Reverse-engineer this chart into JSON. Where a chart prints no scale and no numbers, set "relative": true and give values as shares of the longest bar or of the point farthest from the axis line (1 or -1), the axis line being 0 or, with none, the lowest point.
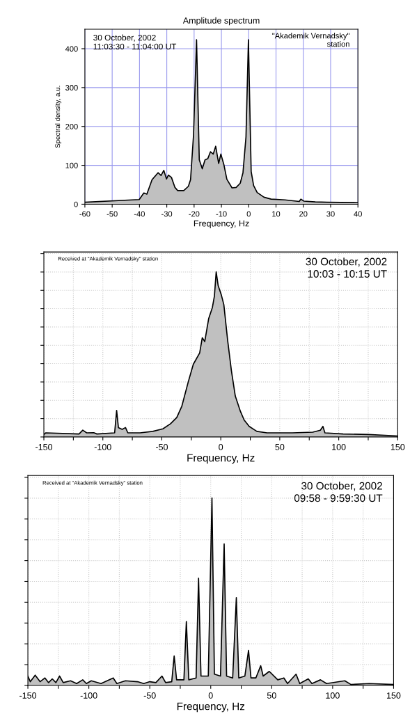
{
  "chart_data": [
    {
      "type": "area",
      "title": "Amplitude spectrum",
      "xlabel": "Frequency, Hz",
      "ylabel": "Spectral density, a.u.",
      "annotations": [
        "30 October, 2002\n11:03:30 - 11:04:00 UT",
        "\"Akademik Vernadsky\"\n station"
      ],
      "xlim": [
        -60,
        40
      ],
      "xticks": [
        -60,
        -50,
        -40,
        -30,
        -20,
        -10,
        0,
        10,
        20,
        30,
        40
      ],
      "ylim": [
        0,
        450
      ],
      "yticks": [
        0,
        100,
        200,
        300,
        400
      ],
      "grid": true,
      "series": [
        {
          "color": "#c0c0c0",
          "x": [
            -60,
            -40.1,
            -38.4,
            -37.3,
            -35.4,
            -33.2,
            -32.1,
            -31.1,
            -30.1,
            -29.4,
            -28.3,
            -27,
            -26,
            -23.8,
            -22.1,
            -21.3,
            -20.2,
            -19.1,
            -18.1,
            -17,
            -16,
            -15,
            -14,
            -13,
            -12.1,
            -11,
            -10.2,
            -9.1,
            -8,
            -6.1,
            -4.6,
            -3.1,
            -2.1,
            -1,
            -0.1,
            0.9,
            1.8,
            3.1,
            5.6,
            8.2,
            13.3,
            18.5,
            19.1,
            20.2,
            24.4,
            28.7,
            39.8
          ],
          "values": [
            5,
            12,
            29,
            26,
            63,
            81,
            74,
            87,
            65,
            75,
            69,
            43,
            35,
            35,
            46,
            63,
            179,
            423,
            114,
            91,
            114,
            117,
            135,
            129,
            149,
            105,
            129,
            102,
            64,
            42,
            43,
            54,
            81,
            173,
            423,
            84,
            48,
            30,
            18,
            13,
            11,
            7,
            13,
            8,
            6,
            5,
            4
          ]
        }
      ]
    },
    {
      "type": "area",
      "xlabel": "Frequency, Hz",
      "relative": true,
      "tick_labels": "x",
      "annotations": [
        "Received at \"Akademik Vernadsky\" station",
        "30 October, 2002\n10:03 - 10:15 UT"
      ],
      "xlim": [
        -150,
        150
      ],
      "xticks": [
        -150,
        {
          "value": -125,
          "label": null
        },
        -100,
        {
          "value": -75,
          "label": null
        },
        -50,
        {
          "value": -25,
          "label": null
        },
        0,
        {
          "value": 25,
          "label": null
        },
        50,
        {
          "value": 75,
          "label": null
        },
        100,
        {
          "value": 125,
          "label": null
        },
        150
      ],
      "grid": true,
      "series": [
        {
          "color": "#c0c0c0",
          "x": [
            -150,
            -148.3,
            -120.2,
            -117,
            -113.7,
            -107.7,
            -105,
            -90,
            -88.3,
            -86.8,
            -83.6,
            -80.8,
            -78.8,
            -68.5,
            -57.7,
            -49.1,
            -42.6,
            -37.3,
            -33,
            -27.6,
            -23.3,
            -17.9,
            -15.7,
            -13.6,
            -10.3,
            -7.1,
            -5.4,
            -3.9,
            -2.2,
            0.4,
            2.6,
            5.8,
            9,
            12.3,
            16.6,
            19.8,
            24.1,
            30.6,
            39.2,
            60.7,
            78,
            84.4,
            86.6,
            88.3,
            103.8,
            125.3,
            150
          ],
          "values": [
            0.015,
            0.025,
            0.018,
            0.041,
            0.025,
            0.026,
            0.018,
            0.025,
            0.161,
            0.057,
            0.046,
            0.057,
            0.025,
            0.025,
            0.034,
            0.049,
            0.08,
            0.118,
            0.187,
            0.333,
            0.44,
            0.509,
            0.601,
            0.578,
            0.716,
            0.785,
            0.854,
            1,
            0.916,
            0.862,
            0.801,
            0.586,
            0.402,
            0.248,
            0.156,
            0.103,
            0.064,
            0.034,
            0.025,
            0.025,
            0.029,
            0.041,
            0.064,
            0.025,
            0.018,
            0.015,
            0.006
          ]
        }
      ]
    },
    {
      "type": "area",
      "xlabel": "Frequency, Hz",
      "relative": true,
      "tick_labels": "x",
      "annotations": [
        "Received at \"Akademik Vernadsky\" station",
        "30 October, 2002\n09:58 - 9:59:30 UT"
      ],
      "xlim": [
        -150,
        150
      ],
      "xticks": [
        -150,
        {
          "value": -125,
          "label": null
        },
        -100,
        {
          "value": -75,
          "label": null
        },
        -50,
        {
          "value": -25,
          "label": null
        },
        0,
        {
          "value": 25,
          "label": null
        },
        50,
        {
          "value": 75,
          "label": null
        },
        100,
        {
          "value": 125,
          "label": null
        },
        150
      ],
      "grid": true,
      "series": [
        {
          "color": "#c0c0c0",
          "x": [
            -150,
            -148,
            -144,
            -140,
            -136,
            -133,
            -130,
            -127,
            -124,
            -121,
            -115,
            -110,
            -105,
            -102,
            -98,
            -90,
            -80,
            -77,
            -70,
            -60,
            -55,
            -50,
            -45,
            -40,
            -37,
            -32,
            -30,
            -28,
            -22,
            -20,
            -18,
            -12,
            -10,
            -8,
            -2,
            1,
            3,
            8,
            11,
            13,
            18,
            21,
            23,
            28,
            31,
            33,
            37,
            41,
            43,
            48,
            55,
            60,
            63,
            70,
            73,
            80,
            83,
            90,
            95,
            110,
            115,
            130,
            150
          ],
          "values": [
            0.05,
            0.02,
            0.055,
            0.02,
            0.04,
            0.015,
            0.035,
            0.015,
            0.05,
            0.015,
            0.025,
            0.01,
            0.03,
            0.01,
            0.025,
            0.01,
            0.04,
            0.01,
            0.025,
            0.02,
            0.01,
            0.02,
            0.015,
            0.05,
            0.015,
            0.02,
            0.157,
            0.03,
            0.03,
            0.341,
            0.03,
            0.04,
            0.572,
            0.05,
            0.05,
            1,
            0.06,
            0.05,
            0.755,
            0.05,
            0.04,
            0.468,
            0.04,
            0.05,
            0.187,
            0.04,
            0.04,
            0.105,
            0.05,
            0.075,
            0.03,
            0.04,
            0.01,
            0.06,
            0.01,
            0.035,
            0.01,
            0.03,
            0.01,
            0.025,
            0.005,
            0.01,
            0.005
          ]
        }
      ]
    }
  ]
}
